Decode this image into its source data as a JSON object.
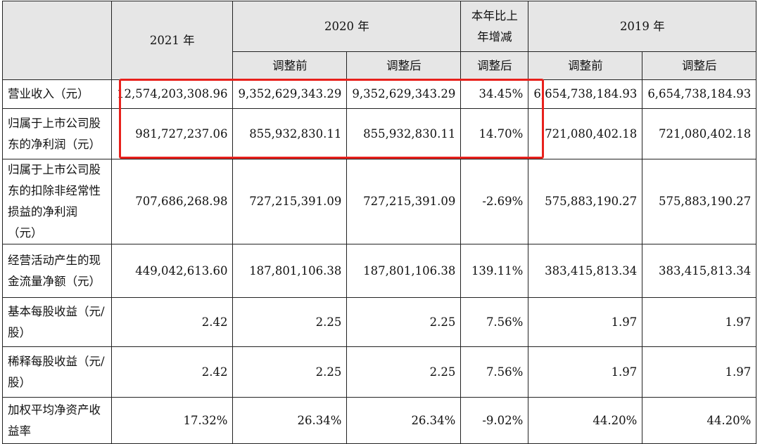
{
  "header": {
    "y2021": "2021 年",
    "y2020": "2020 年",
    "change_line1": "本年比上",
    "change_line2": "年增减",
    "y2019": "2019 年",
    "before": "调整前",
    "after": "调整后",
    "change_after": "调整后"
  },
  "rows": [
    {
      "label": "营业收入（元）",
      "v2021": "12,574,203,308.96",
      "v2020_before": "9,352,629,343.29",
      "v2020_after": "9,352,629,343.29",
      "change": "34.45%",
      "v2019_before": "6,654,738,184.93",
      "v2019_after": "6,654,738,184.93"
    },
    {
      "label": "归属于上市公司股东的净利润（元）",
      "v2021": "981,727,237.06",
      "v2020_before": "855,932,830.11",
      "v2020_after": "855,932,830.11",
      "change": "14.70%",
      "v2019_before": "721,080,402.18",
      "v2019_after": "721,080,402.18"
    },
    {
      "label": "归属于上市公司股东的扣除非经常性损益的净利润（元）",
      "v2021": "707,686,268.98",
      "v2020_before": "727,215,391.09",
      "v2020_after": "727,215,391.09",
      "change": "-2.69%",
      "v2019_before": "575,883,190.27",
      "v2019_after": "575,883,190.27"
    },
    {
      "label": "经营活动产生的现金流量净额（元）",
      "v2021": "449,042,613.60",
      "v2020_before": "187,801,106.38",
      "v2020_after": "187,801,106.38",
      "change": "139.11%",
      "v2019_before": "383,415,813.34",
      "v2019_after": "383,415,813.34"
    },
    {
      "label": "基本每股收益（元/股）",
      "v2021": "2.42",
      "v2020_before": "2.25",
      "v2020_after": "2.25",
      "change": "7.56%",
      "v2019_before": "1.97",
      "v2019_after": "1.97"
    },
    {
      "label": "稀释每股收益（元/股）",
      "v2021": "2.42",
      "v2020_before": "2.25",
      "v2020_after": "2.25",
      "change": "7.56%",
      "v2019_before": "1.97",
      "v2019_after": "1.97"
    },
    {
      "label": "加权平均净资产收益率",
      "v2021": "17.32%",
      "v2020_before": "26.34%",
      "v2020_after": "26.34%",
      "change": "-9.02%",
      "v2019_before": "44.20%",
      "v2019_after": "44.20%"
    }
  ],
  "colors": {
    "header_bg": "#e6e6e6",
    "highlight": "#e8211c",
    "border": "#222222"
  }
}
